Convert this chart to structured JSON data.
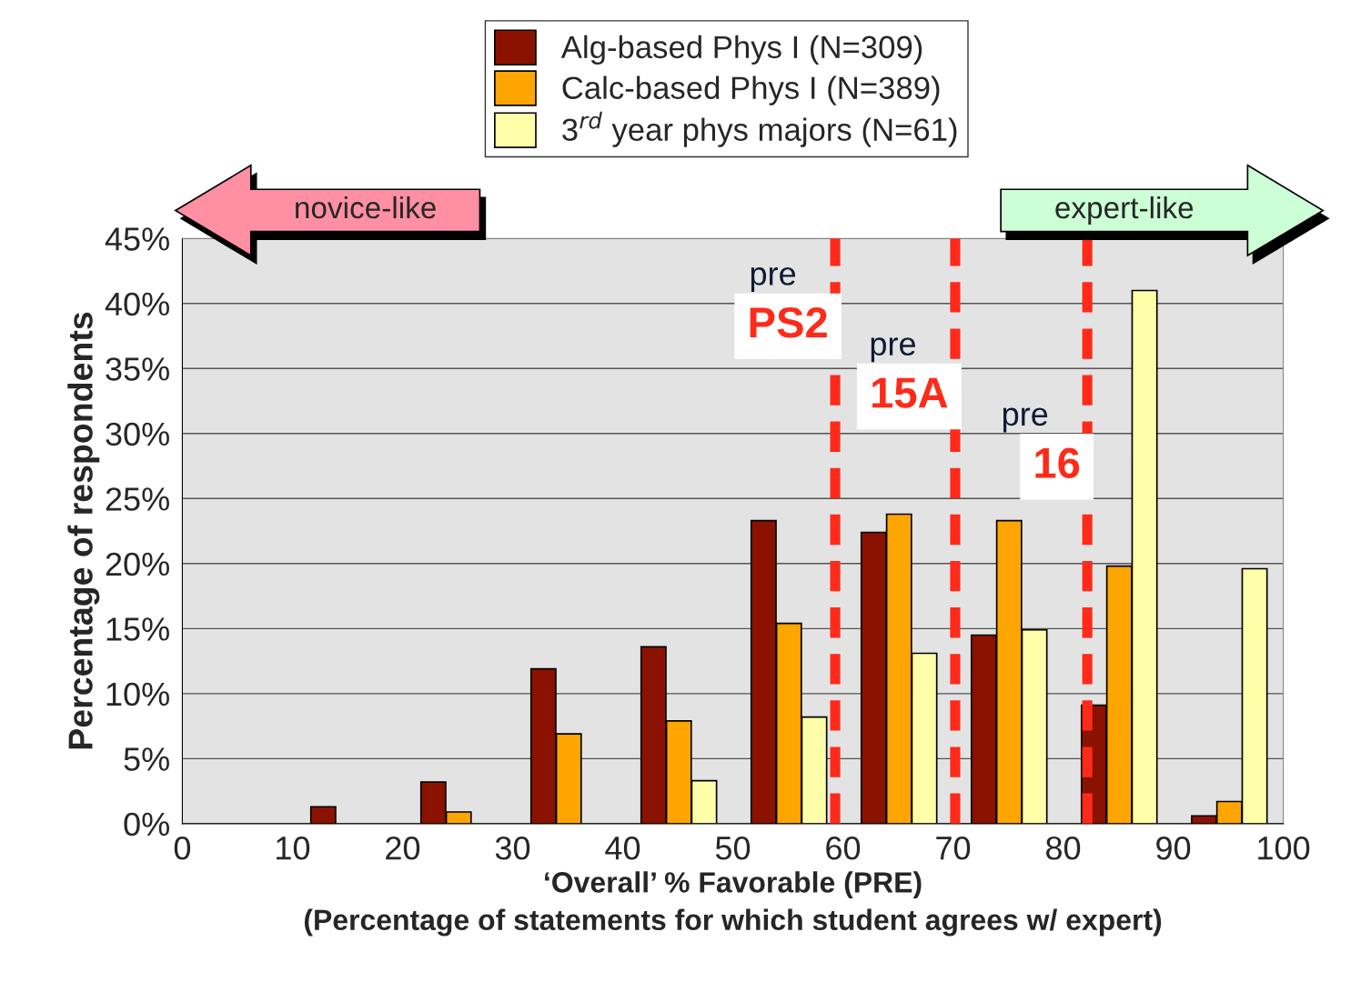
{
  "chart_data": {
    "type": "bar",
    "xlabel": "‘Overall’ % Favorable (PRE)\n(Percentage of statements for which student agrees w/ expert)",
    "ylabel": "Percentage of respondents",
    "series": [
      {
        "name": "Alg-based Phys I (N=309)",
        "color": "#8b1200",
        "x": [
          12.8,
          22.8,
          32.8,
          42.8,
          52.8,
          62.8,
          72.8,
          82.8,
          92.8
        ],
        "values": [
          1.3,
          3.2,
          11.9,
          13.6,
          23.3,
          22.4,
          14.5,
          9.1,
          0.6
        ]
      },
      {
        "name": "Calc-based Phys I (N=389)",
        "color": "#ffa500",
        "x": [
          25.1,
          35.1,
          45.1,
          55.1,
          65.1,
          75.1,
          85.1,
          95.1
        ],
        "values": [
          0.9,
          6.9,
          7.9,
          15.4,
          23.8,
          23.3,
          19.8,
          1.7
        ]
      },
      {
        "name": "3$^{rd}$ year phys majors (N=61)",
        "color": "#ffffaa",
        "x": [
          47.4,
          57.4,
          67.4,
          77.4,
          87.4,
          97.4
        ],
        "values": [
          3.3,
          8.2,
          13.1,
          14.9,
          41.0,
          19.6
        ]
      }
    ],
    "xlim": [
      0,
      100
    ],
    "xticks": [
      0,
      10,
      20,
      30,
      40,
      50,
      60,
      70,
      80,
      90,
      100
    ],
    "ylim": [
      0,
      45
    ],
    "yticks": [
      {
        "value": 0,
        "label": "0%"
      },
      {
        "value": 5,
        "label": "5%"
      },
      {
        "value": 10,
        "label": "10%"
      },
      {
        "value": 15,
        "label": "15%"
      },
      {
        "value": 20,
        "label": "20%"
      },
      {
        "value": 25,
        "label": "25%"
      },
      {
        "value": 30,
        "label": "30%"
      },
      {
        "value": 35,
        "label": "35%"
      },
      {
        "value": 40,
        "label": "40%"
      },
      {
        "value": 45,
        "label": "45%"
      }
    ],
    "ref_lines": [
      {
        "axis": "x",
        "value": 59.3,
        "label": "pre\nPS2",
        "color": "#ff2a1a",
        "line_style": "dashed"
      },
      {
        "axis": "x",
        "value": 70.2,
        "label": "pre\n15A",
        "color": "#ff2a1a",
        "line_style": "dashed"
      },
      {
        "axis": "x",
        "value": 82.2,
        "label": "pre\n16",
        "color": "#ff2a1a",
        "line_style": "dashed"
      }
    ],
    "annotations": [
      "novice-like",
      "expert-like"
    ],
    "grid": "y",
    "legend": "top"
  }
}
